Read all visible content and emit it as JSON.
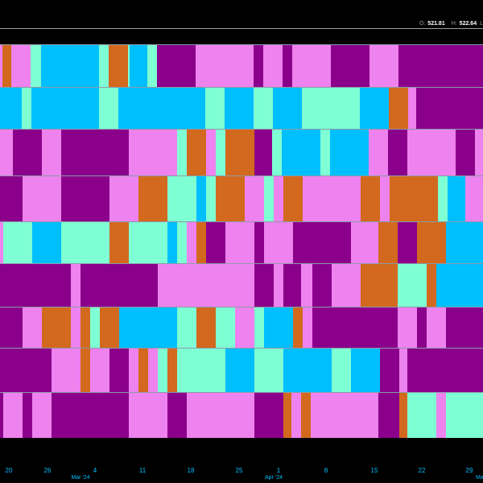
{
  "legend": {
    "open_label": "O:",
    "open_value": "521.81",
    "high_label": "H:",
    "high_value": "522.64",
    "trailing": "L"
  },
  "colors": {
    "violet": "#ee82ee",
    "purple": "#8b008b",
    "deepskyblue": "#00bfff",
    "aquamarine": "#7fffd4",
    "chocolate": "#d2691e",
    "background": "#000000",
    "axis_text": "#00bfff"
  },
  "chart_data": {
    "type": "heatmap",
    "x_range": [
      "Feb 19 '24",
      "Apr 30 '24"
    ],
    "day_ticks": [
      "20",
      "26",
      "4",
      "11",
      "18",
      "25",
      "1",
      "8",
      "15",
      "22",
      "29"
    ],
    "month_labels": [
      "Mar '24",
      "Apr '24",
      "Ma"
    ],
    "rows": [
      [
        [
          "violet",
          0,
          3
        ],
        [
          "chocolate",
          3,
          14
        ],
        [
          "violet",
          14,
          38
        ],
        [
          "aquamarine",
          38,
          51
        ],
        [
          "deepskyblue",
          51,
          123
        ],
        [
          "aquamarine",
          123,
          135
        ],
        [
          "chocolate",
          135,
          159
        ],
        [
          "aquamarine",
          159,
          161
        ],
        [
          "deepskyblue",
          161,
          183
        ],
        [
          "aquamarine",
          183,
          195
        ],
        [
          "purple",
          195,
          243
        ],
        [
          "violet",
          243,
          315
        ],
        [
          "purple",
          315,
          327
        ],
        [
          "violet",
          327,
          351
        ],
        [
          "purple",
          351,
          363
        ],
        [
          "violet",
          363,
          411
        ],
        [
          "purple",
          411,
          459
        ],
        [
          "violet",
          459,
          495
        ],
        [
          "purple",
          495,
          600
        ]
      ],
      [
        [
          "deepskyblue",
          0,
          27
        ],
        [
          "aquamarine",
          27,
          39
        ],
        [
          "deepskyblue",
          39,
          123
        ],
        [
          "aquamarine",
          123,
          147
        ],
        [
          "deepskyblue",
          147,
          255
        ],
        [
          "aquamarine",
          255,
          279
        ],
        [
          "deepskyblue",
          279,
          315
        ],
        [
          "aquamarine",
          315,
          339
        ],
        [
          "deepskyblue",
          339,
          375
        ],
        [
          "aquamarine",
          375,
          447
        ],
        [
          "deepskyblue",
          447,
          483
        ],
        [
          "chocolate",
          483,
          507
        ],
        [
          "violet",
          507,
          517
        ],
        [
          "purple",
          517,
          600
        ]
      ],
      [
        [
          "violet",
          0,
          16
        ],
        [
          "purple",
          16,
          52
        ],
        [
          "violet",
          52,
          76
        ],
        [
          "purple",
          76,
          160
        ],
        [
          "violet",
          160,
          220
        ],
        [
          "aquamarine",
          220,
          232
        ],
        [
          "chocolate",
          232,
          256
        ],
        [
          "violet",
          256,
          268
        ],
        [
          "aquamarine",
          268,
          280
        ],
        [
          "chocolate",
          280,
          316
        ],
        [
          "purple",
          316,
          338
        ],
        [
          "aquamarine",
          338,
          350
        ],
        [
          "deepskyblue",
          350,
          398
        ],
        [
          "aquamarine",
          398,
          410
        ],
        [
          "deepskyblue",
          410,
          458
        ],
        [
          "violet",
          458,
          482
        ],
        [
          "purple",
          482,
          506
        ],
        [
          "violet",
          506,
          566
        ],
        [
          "purple",
          566,
          590
        ],
        [
          "violet",
          590,
          600
        ]
      ],
      [
        [
          "purple",
          0,
          28
        ],
        [
          "violet",
          28,
          76
        ],
        [
          "purple",
          76,
          136
        ],
        [
          "violet",
          136,
          172
        ],
        [
          "chocolate",
          172,
          208
        ],
        [
          "aquamarine",
          208,
          244
        ],
        [
          "deepskyblue",
          244,
          256
        ],
        [
          "aquamarine",
          256,
          268
        ],
        [
          "chocolate",
          268,
          304
        ],
        [
          "violet",
          304,
          328
        ],
        [
          "aquamarine",
          328,
          340
        ],
        [
          "violet",
          340,
          352
        ],
        [
          "chocolate",
          352,
          376
        ],
        [
          "violet",
          376,
          448
        ],
        [
          "chocolate",
          448,
          472
        ],
        [
          "violet",
          472,
          484
        ],
        [
          "chocolate",
          484,
          544
        ],
        [
          "aquamarine",
          544,
          556
        ],
        [
          "deepskyblue",
          556,
          578
        ],
        [
          "violet",
          578,
          600
        ]
      ],
      [
        [
          "violet",
          0,
          4
        ],
        [
          "aquamarine",
          4,
          40
        ],
        [
          "deepskyblue",
          40,
          76
        ],
        [
          "aquamarine",
          76,
          136
        ],
        [
          "chocolate",
          136,
          160
        ],
        [
          "aquamarine",
          160,
          208
        ],
        [
          "deepskyblue",
          208,
          220
        ],
        [
          "aquamarine",
          220,
          232
        ],
        [
          "violet",
          232,
          244
        ],
        [
          "chocolate",
          244,
          256
        ],
        [
          "purple",
          256,
          280
        ],
        [
          "violet",
          280,
          316
        ],
        [
          "purple",
          316,
          328
        ],
        [
          "violet",
          328,
          364
        ],
        [
          "purple",
          364,
          436
        ],
        [
          "violet",
          436,
          470
        ],
        [
          "chocolate",
          470,
          494
        ],
        [
          "purple",
          494,
          518
        ],
        [
          "chocolate",
          518,
          554
        ],
        [
          "deepskyblue",
          554,
          600
        ]
      ],
      [
        [
          "purple",
          0,
          88
        ],
        [
          "violet",
          88,
          100
        ],
        [
          "purple",
          100,
          196
        ],
        [
          "violet",
          196,
          316
        ],
        [
          "purple",
          316,
          340
        ],
        [
          "violet",
          340,
          352
        ],
        [
          "purple",
          352,
          374
        ],
        [
          "violet",
          374,
          388
        ],
        [
          "purple",
          388,
          412
        ],
        [
          "violet",
          412,
          448
        ],
        [
          "chocolate",
          448,
          494
        ],
        [
          "aquamarine",
          494,
          530
        ],
        [
          "chocolate",
          530,
          542
        ],
        [
          "deepskyblue",
          542,
          600
        ]
      ],
      [
        [
          "purple",
          0,
          28
        ],
        [
          "violet",
          28,
          52
        ],
        [
          "chocolate",
          52,
          88
        ],
        [
          "violet",
          88,
          100
        ],
        [
          "chocolate",
          100,
          112
        ],
        [
          "aquamarine",
          112,
          124
        ],
        [
          "chocolate",
          124,
          148
        ],
        [
          "deepskyblue",
          148,
          220
        ],
        [
          "aquamarine",
          220,
          244
        ],
        [
          "chocolate",
          244,
          268
        ],
        [
          "aquamarine",
          268,
          292
        ],
        [
          "violet",
          292,
          316
        ],
        [
          "aquamarine",
          316,
          328
        ],
        [
          "deepskyblue",
          328,
          364
        ],
        [
          "chocolate",
          364,
          376
        ],
        [
          "violet",
          376,
          388
        ],
        [
          "purple",
          388,
          494
        ],
        [
          "violet",
          494,
          518
        ],
        [
          "purple",
          518,
          530
        ],
        [
          "violet",
          530,
          554
        ],
        [
          "purple",
          554,
          600
        ]
      ],
      [
        [
          "purple",
          0,
          64
        ],
        [
          "violet",
          64,
          100
        ],
        [
          "chocolate",
          100,
          112
        ],
        [
          "violet",
          112,
          136
        ],
        [
          "purple",
          136,
          160
        ],
        [
          "violet",
          160,
          172
        ],
        [
          "chocolate",
          172,
          184
        ],
        [
          "violet",
          184,
          196
        ],
        [
          "aquamarine",
          196,
          208
        ],
        [
          "chocolate",
          208,
          220
        ],
        [
          "aquamarine",
          220,
          280
        ],
        [
          "deepskyblue",
          280,
          316
        ],
        [
          "aquamarine",
          316,
          352
        ],
        [
          "deepskyblue",
          352,
          412
        ],
        [
          "aquamarine",
          412,
          436
        ],
        [
          "deepskyblue",
          436,
          472
        ],
        [
          "purple",
          472,
          496
        ],
        [
          "violet",
          496,
          506
        ],
        [
          "purple",
          506,
          600
        ]
      ],
      [
        [
          "purple",
          0,
          4
        ],
        [
          "violet",
          4,
          28
        ],
        [
          "purple",
          28,
          40
        ],
        [
          "violet",
          40,
          64
        ],
        [
          "purple",
          64,
          160
        ],
        [
          "violet",
          160,
          208
        ],
        [
          "purple",
          208,
          232
        ],
        [
          "violet",
          232,
          316
        ],
        [
          "purple",
          316,
          352
        ],
        [
          "chocolate",
          352,
          362
        ],
        [
          "violet",
          362,
          374
        ],
        [
          "chocolate",
          374,
          386
        ],
        [
          "violet",
          386,
          470
        ],
        [
          "purple",
          470,
          496
        ],
        [
          "chocolate",
          496,
          506
        ],
        [
          "aquamarine",
          506,
          542
        ],
        [
          "violet",
          542,
          554
        ],
        [
          "aquamarine",
          554,
          600
        ]
      ]
    ]
  }
}
